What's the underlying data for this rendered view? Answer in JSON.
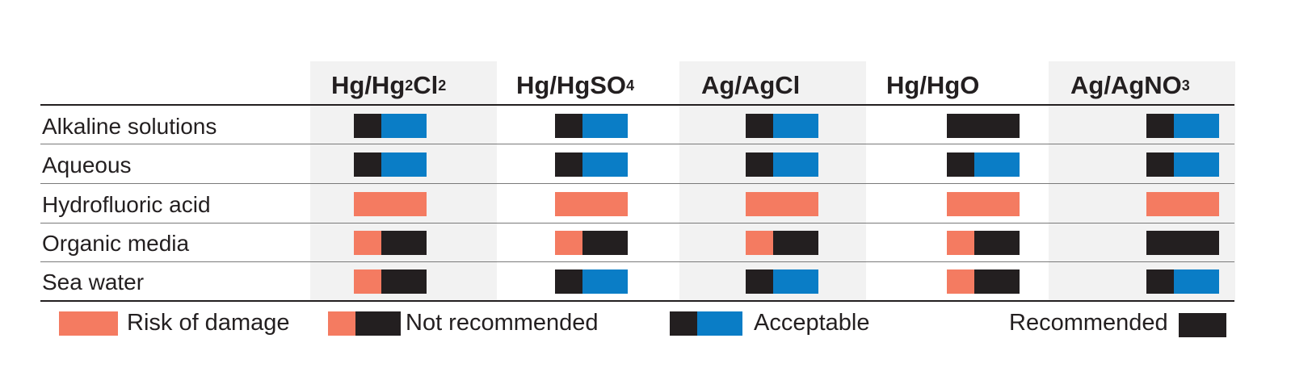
{
  "colors": {
    "risk": "#f47b61",
    "dark": "#231f20",
    "blue": "#0a7dc6"
  },
  "chart_data": {
    "type": "table",
    "columns": [
      {
        "base": "Hg/Hg",
        "sub1": "2",
        "mid": "Cl",
        "sub2": "2"
      },
      {
        "base": "Hg/HgSO",
        "sub1": "4",
        "mid": "",
        "sub2": ""
      },
      {
        "base": "Ag/AgCl",
        "sub1": "",
        "mid": "",
        "sub2": ""
      },
      {
        "base": "Hg/HgO",
        "sub1": "",
        "mid": "",
        "sub2": ""
      },
      {
        "base": "Ag/AgNO",
        "sub1": "3",
        "mid": "",
        "sub2": ""
      }
    ],
    "rows": [
      "Alkaline solutions",
      "Aqueous",
      "Hydrofluoric acid",
      "Organic media",
      "Sea water"
    ],
    "ratings": [
      [
        "acceptable",
        "acceptable",
        "acceptable",
        "recommended",
        "acceptable"
      ],
      [
        "acceptable",
        "acceptable",
        "acceptable",
        "acceptable",
        "acceptable"
      ],
      [
        "risk",
        "risk",
        "risk",
        "risk",
        "risk"
      ],
      [
        "not_recommended",
        "not_recommended",
        "not_recommended",
        "not_recommended",
        "recommended"
      ],
      [
        "not_recommended",
        "acceptable",
        "acceptable",
        "not_recommended",
        "acceptable"
      ]
    ],
    "legend": [
      {
        "key": "risk",
        "label": "Risk of damage"
      },
      {
        "key": "not_recommended",
        "label": "Not recommended"
      },
      {
        "key": "acceptable",
        "label": "Acceptable"
      },
      {
        "key": "recommended",
        "label": "Recommended"
      }
    ]
  }
}
